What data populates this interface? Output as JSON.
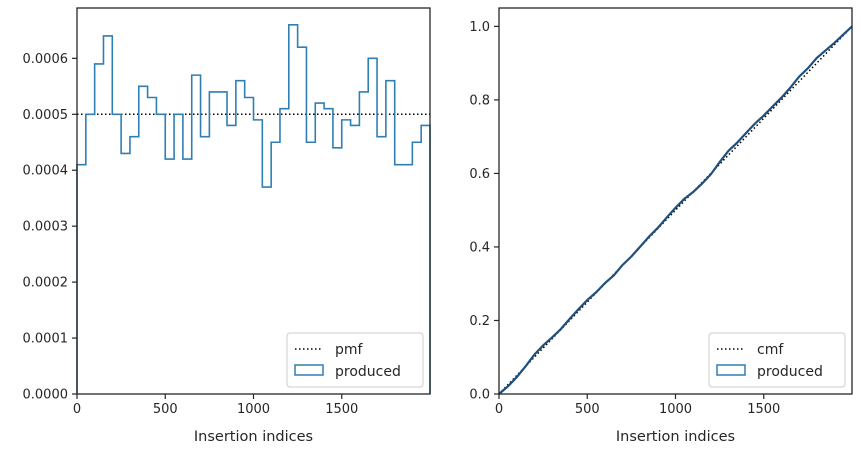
{
  "colors": {
    "hist": "#2f7fb4",
    "axis": "#262626",
    "ref": "#000000",
    "cum": "#1f4f7c"
  },
  "chart_data": [
    {
      "type": "step",
      "xlabel": "Insertion indices",
      "ylabel": "",
      "xlim": [
        0,
        2000
      ],
      "ylim": [
        0,
        0.00069
      ],
      "xticks": [
        0,
        500,
        1000,
        1500
      ],
      "xtick_labels": [
        "0",
        "500",
        "1000",
        "1500"
      ],
      "yticks": [
        0,
        0.0001,
        0.0002,
        0.0003,
        0.0004,
        0.0005,
        0.0006
      ],
      "ytick_labels": [
        "0.0000",
        "0.0001",
        "0.0002",
        "0.0003",
        "0.0004",
        "0.0005",
        "0.0006"
      ],
      "reference": {
        "name": "pmf",
        "value": 0.0005
      },
      "series": [
        {
          "name": "produced",
          "bin_edges": [
            0,
            50,
            100,
            150,
            200,
            250,
            300,
            350,
            400,
            450,
            500,
            550,
            600,
            650,
            700,
            750,
            800,
            850,
            900,
            950,
            1000,
            1050,
            1100,
            1150,
            1200,
            1250,
            1300,
            1350,
            1400,
            1450,
            1500,
            1550,
            1600,
            1650,
            1700,
            1750,
            1800,
            1850,
            1900,
            1950,
            2000
          ],
          "values": [
            0.00041,
            0.0005,
            0.00059,
            0.00064,
            0.0005,
            0.00043,
            0.00046,
            0.00055,
            0.00053,
            0.0005,
            0.00042,
            0.0005,
            0.00042,
            0.00057,
            0.00046,
            0.00054,
            0.00054,
            0.00048,
            0.00056,
            0.00053,
            0.00049,
            0.00037,
            0.00045,
            0.00051,
            0.00066,
            0.00062,
            0.00045,
            0.00052,
            0.00051,
            0.00044,
            0.00049,
            0.00048,
            0.00054,
            0.0006,
            0.00046,
            0.00056,
            0.00041,
            0.00041,
            0.00045,
            0.00048
          ]
        }
      ],
      "legend": {
        "position": "lower-right",
        "entries": [
          "pmf",
          "produced"
        ]
      }
    },
    {
      "type": "step",
      "xlabel": "Insertion indices",
      "ylabel": "",
      "xlim": [
        0,
        2000
      ],
      "ylim": [
        0,
        1.05
      ],
      "xticks": [
        0,
        500,
        1000,
        1500
      ],
      "xtick_labels": [
        "0",
        "500",
        "1000",
        "1500"
      ],
      "yticks": [
        0,
        0.2,
        0.4,
        0.6,
        0.8,
        1.0
      ],
      "ytick_labels": [
        "0.0",
        "0.2",
        "0.4",
        "0.6",
        "0.8",
        "1.0"
      ],
      "reference": {
        "name": "cmf",
        "from": [
          0,
          0
        ],
        "to": [
          2000,
          1.0
        ]
      },
      "series": [
        {
          "name": "produced",
          "x": [
            0,
            50,
            100,
            150,
            200,
            250,
            300,
            350,
            400,
            450,
            500,
            550,
            600,
            650,
            700,
            750,
            800,
            850,
            900,
            950,
            1000,
            1050,
            1100,
            1150,
            1200,
            1250,
            1300,
            1350,
            1400,
            1450,
            1500,
            1550,
            1600,
            1650,
            1700,
            1750,
            1800,
            1850,
            1900,
            1950,
            2000
          ],
          "cumulative": [
            0,
            0.0205,
            0.0455,
            0.075,
            0.107,
            0.132,
            0.1535,
            0.1765,
            0.204,
            0.2305,
            0.2555,
            0.2765,
            0.3015,
            0.3225,
            0.351,
            0.374,
            0.401,
            0.428,
            0.452,
            0.48,
            0.5065,
            0.531,
            0.5495,
            0.572,
            0.5975,
            0.6305,
            0.6615,
            0.684,
            0.71,
            0.7355,
            0.7575,
            0.782,
            0.806,
            0.833,
            0.863,
            0.886,
            0.914,
            0.9345,
            0.955,
            0.9775,
            1.0
          ]
        }
      ],
      "legend": {
        "position": "lower-right",
        "entries": [
          "cmf",
          "produced"
        ]
      }
    }
  ]
}
